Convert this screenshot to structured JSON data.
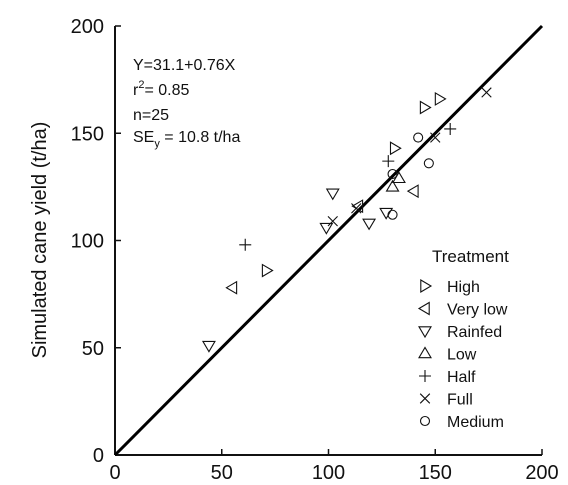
{
  "chart_data": {
    "type": "scatter",
    "title": "",
    "xlabel": "",
    "ylabel": "Simulated cane yield (t/ha)",
    "xlim": [
      0,
      200
    ],
    "ylim": [
      0,
      200
    ],
    "x_ticks": [
      "0",
      "50",
      "100",
      "150",
      "200"
    ],
    "y_ticks": [
      "0",
      "50",
      "100",
      "150",
      "200"
    ],
    "grid": false,
    "legend_title": "Treatment",
    "legend_position": "bottom-right",
    "stats": {
      "equation": "Y=31.1+0.76X",
      "r2_prefix": "r",
      "r2_sup": "2",
      "r2_value": "= 0.85",
      "n": "n=25",
      "se_prefix": "SE",
      "se_sub": "y",
      "se_value": " = 10.8 t/ha"
    },
    "reference_line": [
      [
        0,
        0
      ],
      [
        200,
        200
      ]
    ],
    "series": [
      {
        "name": "High",
        "marker": "triangle-right",
        "points": [
          [
            71,
            86
          ],
          [
            131,
            143
          ],
          [
            145,
            162
          ],
          [
            152,
            166
          ]
        ]
      },
      {
        "name": "Very low",
        "marker": "triangle-left",
        "points": [
          [
            55,
            78
          ],
          [
            114,
            116
          ],
          [
            140,
            123
          ]
        ]
      },
      {
        "name": "Rainfed",
        "marker": "triangle-down",
        "points": [
          [
            44,
            51
          ],
          [
            99,
            106
          ],
          [
            102,
            122
          ],
          [
            119,
            108
          ],
          [
            127,
            113
          ]
        ]
      },
      {
        "name": "Low",
        "marker": "triangle-up",
        "points": [
          [
            130,
            125
          ],
          [
            133,
            129
          ]
        ]
      },
      {
        "name": "Half",
        "marker": "plus",
        "points": [
          [
            61,
            98
          ],
          [
            128,
            137
          ],
          [
            157,
            152
          ]
        ]
      },
      {
        "name": "Full",
        "marker": "x",
        "points": [
          [
            102,
            109
          ],
          [
            113,
            115
          ],
          [
            150,
            148
          ],
          [
            174,
            169
          ]
        ]
      },
      {
        "name": "Medium",
        "marker": "circle",
        "points": [
          [
            130,
            131
          ],
          [
            130,
            112
          ],
          [
            142,
            148
          ],
          [
            147,
            136
          ]
        ]
      }
    ]
  }
}
